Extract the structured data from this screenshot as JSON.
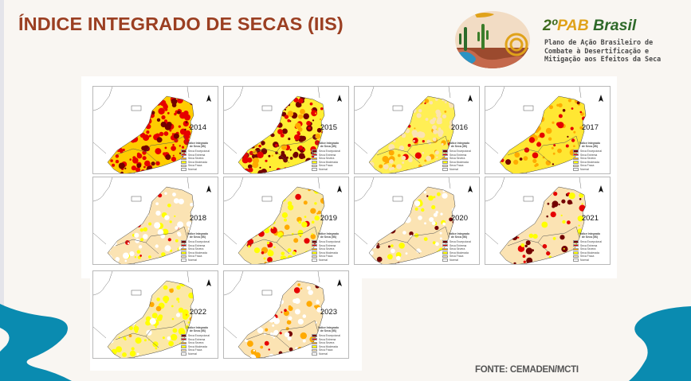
{
  "header": {
    "title": "ÍNDICE INTEGRADO DE SECAS (IIS)",
    "brand": {
      "prefix": "2º",
      "pab": "PAB",
      "suffix": " Brasil"
    },
    "subtitle_lines": [
      "Plano de Ação Brasileiro de",
      "Combate à Desertificação e",
      "Mitigação aos Efeitos da Seca"
    ]
  },
  "colors": {
    "title": "#9b3f22",
    "accent_blue": "#0a8bb0",
    "seca_excepcional": "#730000",
    "seca_extrema": "#e60000",
    "seca_severa": "#ffaa00",
    "seca_moderada": "#ffff00",
    "seca_fraca": "#fbe3b3",
    "normal": "#ffffff"
  },
  "legend": {
    "title_line1": "Índice Integrado",
    "title_line2": "de Seca (IIS)",
    "items": [
      {
        "label": "Seca Excepcional",
        "color": "#730000"
      },
      {
        "label": "Seca Extrema",
        "color": "#e60000"
      },
      {
        "label": "Seca Severa",
        "color": "#ffaa00"
      },
      {
        "label": "Seca Moderada",
        "color": "#ffff00"
      },
      {
        "label": "Seca Fraca",
        "color": "#fbe3b3"
      },
      {
        "label": "Normal",
        "color": "#ffffff"
      }
    ]
  },
  "maps": [
    {
      "year": "2014",
      "base": "#ffcc00",
      "dominant": "Seca Extrema"
    },
    {
      "year": "2015",
      "base": "#ffee33",
      "dominant": "Seca Excepcional (nordeste)"
    },
    {
      "year": "2016",
      "base": "#ffef55",
      "dominant": "Seca Moderada"
    },
    {
      "year": "2017",
      "base": "#ffe733",
      "dominant": "Seca Moderada"
    },
    {
      "year": "2018",
      "base": "#fbe3b3",
      "dominant": "Seca Fraca"
    },
    {
      "year": "2019",
      "base": "#fbe7a3",
      "dominant": "Seca Fraca/Moderada"
    },
    {
      "year": "2020",
      "base": "#fbe3b3",
      "dominant": "Seca Fraca; Excepcional no sudoeste"
    },
    {
      "year": "2021",
      "base": "#fbe3b3",
      "dominant": "Seca Fraca; Excepcional no sudoeste"
    },
    {
      "year": "2022",
      "base": "#fbe8a8",
      "dominant": "Seca Fraca/Moderada"
    },
    {
      "year": "2023",
      "base": "#fbe3b3",
      "dominant": "Seca Fraca; Excepcional no nordeste"
    }
  ],
  "footer": {
    "source": "FONTE: CEMADEN/MCTI"
  }
}
